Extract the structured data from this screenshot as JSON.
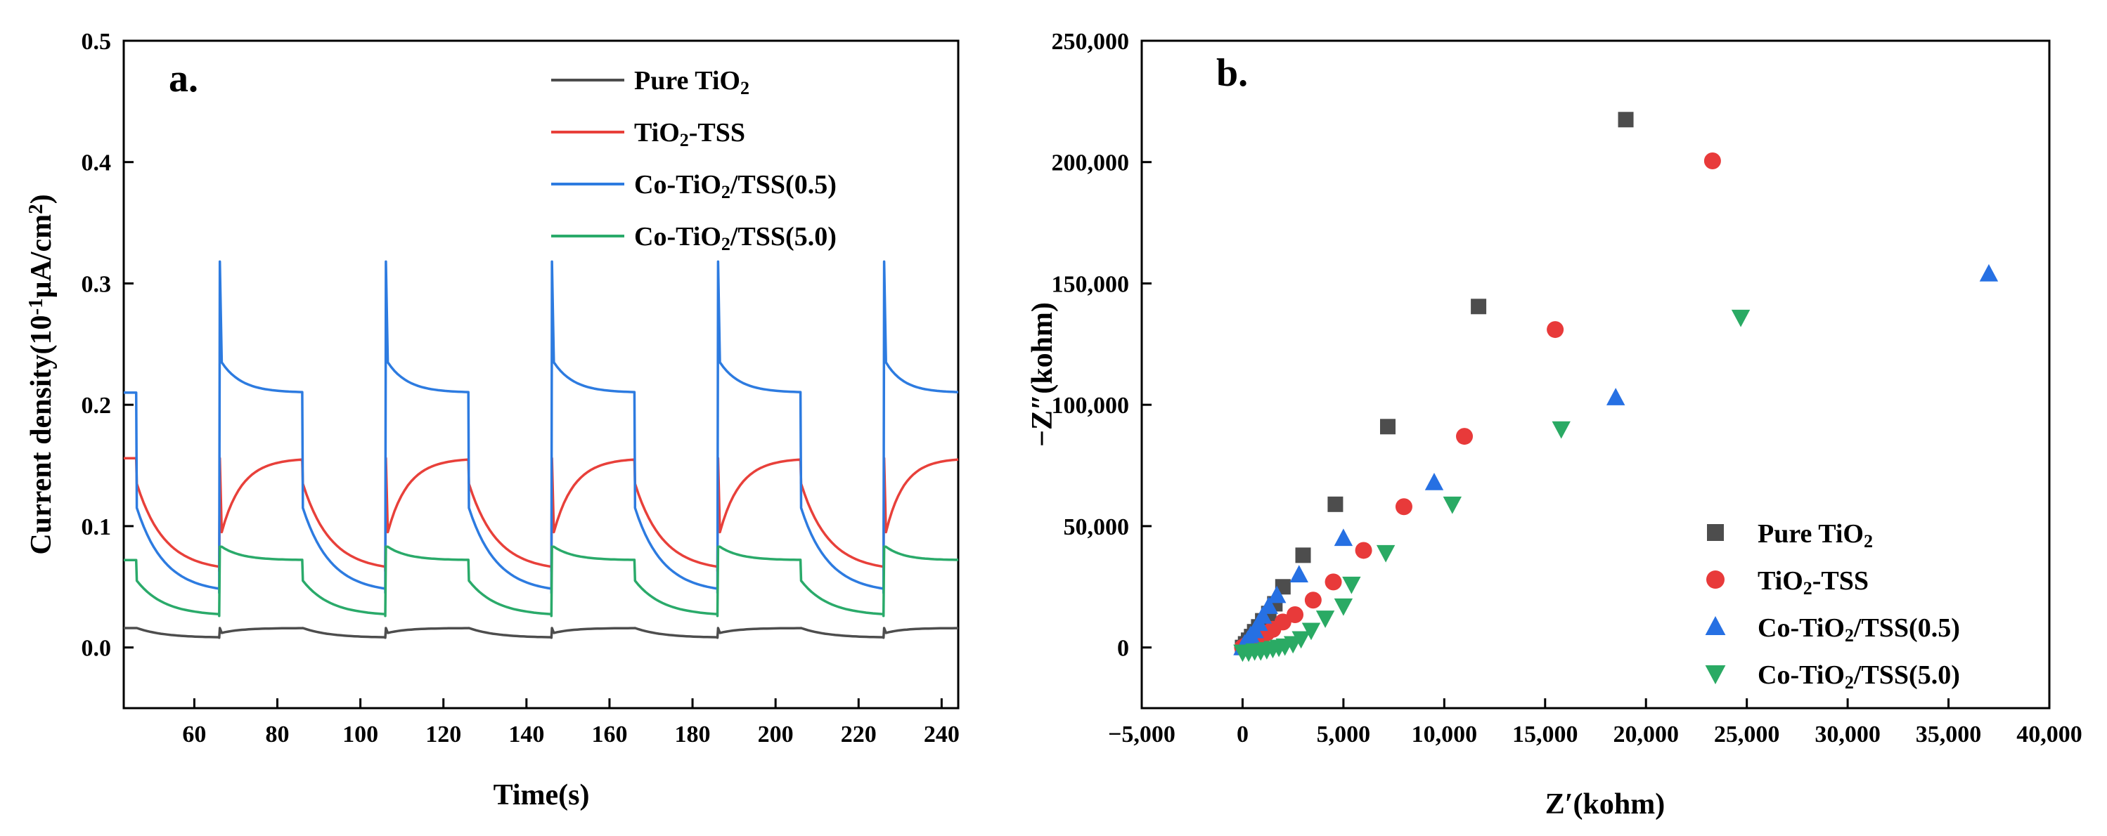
{
  "chart_data": [
    {
      "type": "line",
      "panel_label": "a.",
      "xlabel": "Time(s)",
      "ylabel": "Current density(10⁻¹μA/cm²)",
      "xlim": [
        43,
        244
      ],
      "ylim": [
        -0.05,
        0.5
      ],
      "xticks": [
        60,
        80,
        100,
        120,
        140,
        160,
        180,
        200,
        220,
        240
      ],
      "yticks": [
        0.0,
        0.1,
        0.2,
        0.3,
        0.4,
        0.5
      ],
      "xtick_labels": [
        "60",
        "80",
        "100",
        "120",
        "140",
        "160",
        "180",
        "200",
        "220",
        "240"
      ],
      "ytick_labels": [
        "0.0",
        "0.1",
        "0.2",
        "0.3",
        "0.4",
        "0.5"
      ],
      "grid": false,
      "legend_position": "top-right",
      "light_on_intervals": [
        [
          43,
          46
        ],
        [
          66,
          86
        ],
        [
          106,
          126
        ],
        [
          146,
          166
        ],
        [
          186,
          206
        ],
        [
          226,
          244
        ]
      ],
      "series": [
        {
          "name": "Pure TiO₂",
          "color": "#4d4d4d",
          "dark_start": 0.016,
          "dark_end": 0.008,
          "light_start": 0.012,
          "light_end": 0.016,
          "spike": 0.016
        },
        {
          "name": "TiO₂-TSS",
          "color": "#e8403a",
          "dark_start": 0.135,
          "dark_end": 0.063,
          "light_start": 0.095,
          "light_end": 0.156,
          "spike": 0.156
        },
        {
          "name": "Co-TiO₂/TSS(0.5)",
          "color": "#2d7be0",
          "dark_start": 0.115,
          "dark_end": 0.045,
          "light_start": 0.235,
          "light_end": 0.21,
          "spike": 0.318
        },
        {
          "name": "Co-TiO₂/TSS(5.0)",
          "color": "#2aaa6a",
          "dark_start": 0.055,
          "dark_end": 0.026,
          "light_start": 0.083,
          "light_end": 0.072,
          "spike": 0.083
        }
      ]
    },
    {
      "type": "scatter",
      "panel_label": "b.",
      "xlabel": "Z′(kohm)",
      "ylabel": "−Z″(kohm)",
      "xlim": [
        -5000,
        40000
      ],
      "ylim": [
        -25000,
        250000
      ],
      "xticks": [
        -5000,
        0,
        5000,
        10000,
        15000,
        20000,
        25000,
        30000,
        35000,
        40000
      ],
      "yticks": [
        0,
        50000,
        100000,
        150000,
        200000,
        250000
      ],
      "xtick_labels": [
        "−5,000",
        "0",
        "5,000",
        "10,000",
        "15,000",
        "20,000",
        "25,000",
        "30,000",
        "35,000",
        "40,000"
      ],
      "ytick_labels": [
        "0",
        "50,000",
        "100,000",
        "150,000",
        "200,000",
        "250,000"
      ],
      "grid": false,
      "legend_position": "bottom-right",
      "series": [
        {
          "name": "Pure TiO₂",
          "color": "#4d4d4d",
          "marker": "square",
          "points": [
            [
              0,
              0
            ],
            [
              150,
              1500
            ],
            [
              300,
              3000
            ],
            [
              450,
              4500
            ],
            [
              600,
              6500
            ],
            [
              800,
              8500
            ],
            [
              1000,
              11000
            ],
            [
              1300,
              14000
            ],
            [
              1600,
              18000
            ],
            [
              2000,
              25000
            ],
            [
              3000,
              38000
            ],
            [
              4600,
              59000
            ],
            [
              7200,
              91000
            ],
            [
              11700,
              140500
            ],
            [
              19000,
              217500
            ]
          ]
        },
        {
          "name": "TiO₂-TSS",
          "color": "#e83a3a",
          "marker": "circle",
          "points": [
            [
              0,
              0
            ],
            [
              200,
              1000
            ],
            [
              400,
              2000
            ],
            [
              600,
              3000
            ],
            [
              900,
              4500
            ],
            [
              1200,
              6000
            ],
            [
              1500,
              7500
            ],
            [
              2000,
              10500
            ],
            [
              2600,
              13500
            ],
            [
              3500,
              19500
            ],
            [
              4500,
              27000
            ],
            [
              6000,
              40000
            ],
            [
              8000,
              58000
            ],
            [
              11000,
              87000
            ],
            [
              15500,
              131000
            ],
            [
              23300,
              200500
            ]
          ]
        },
        {
          "name": "Co-TiO₂/TSS(0.5)",
          "color": "#2670e3",
          "marker": "triangle-up",
          "points": [
            [
              0,
              0
            ],
            [
              100,
              1500
            ],
            [
              250,
              3000
            ],
            [
              400,
              5000
            ],
            [
              600,
              7000
            ],
            [
              800,
              10000
            ],
            [
              1000,
              13000
            ],
            [
              1300,
              17000
            ],
            [
              1700,
              21500
            ],
            [
              2800,
              30000
            ],
            [
              5000,
              45000
            ],
            [
              9500,
              68000
            ],
            [
              18500,
              103000
            ],
            [
              37000,
              154000
            ]
          ]
        },
        {
          "name": "Co-TiO₂/TSS(5.0)",
          "color": "#2aaa64",
          "marker": "triangle-down",
          "points": [
            [
              0,
              -2000
            ],
            [
              300,
              -2000
            ],
            [
              600,
              -1500
            ],
            [
              900,
              -1500
            ],
            [
              1200,
              -1000
            ],
            [
              1500,
              -500
            ],
            [
              1800,
              0
            ],
            [
              2100,
              500
            ],
            [
              2500,
              1500
            ],
            [
              2900,
              3500
            ],
            [
              3400,
              7000
            ],
            [
              4100,
              12000
            ],
            [
              5000,
              17000
            ],
            [
              5400,
              26000
            ],
            [
              7100,
              39000
            ],
            [
              10400,
              59000
            ],
            [
              15800,
              90000
            ],
            [
              24700,
              136000
            ]
          ]
        }
      ]
    }
  ]
}
